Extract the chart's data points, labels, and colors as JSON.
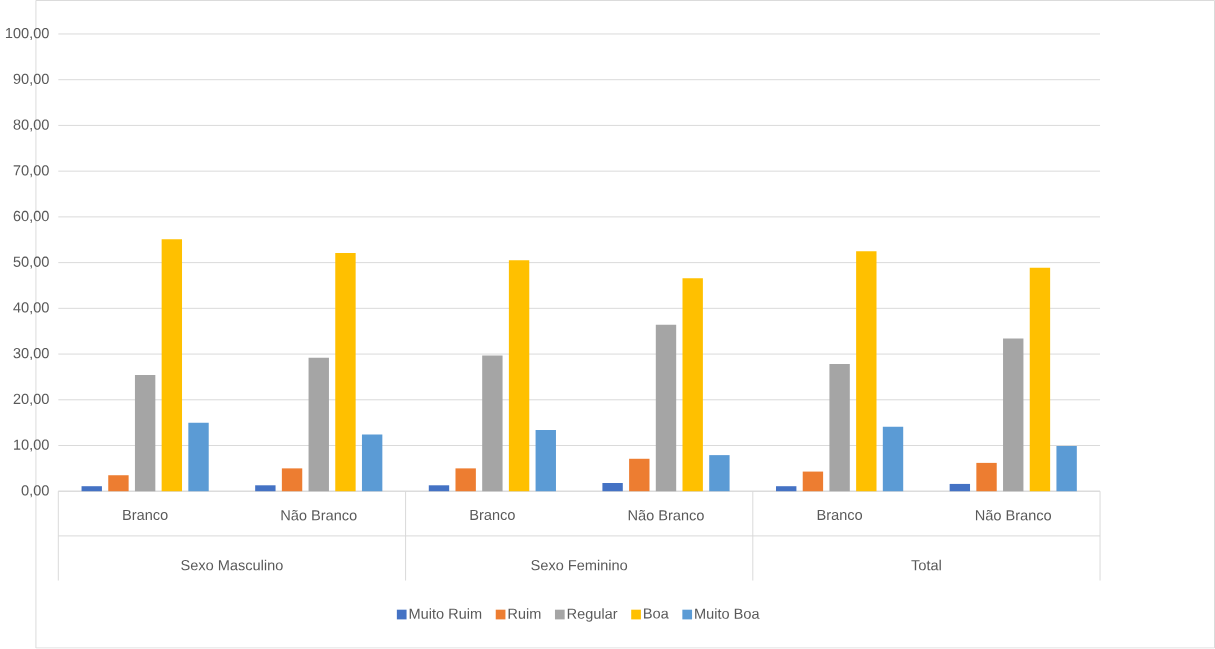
{
  "chart_data": {
    "type": "bar",
    "categories": [
      "Branco",
      "Não Branco",
      "Branco",
      "Não Branco",
      "Branco",
      "Não Branco"
    ],
    "annotations": [
      "Sexo Masculino",
      "Sexo Feminino",
      "Total"
    ],
    "series": [
      {
        "name": "Muito Ruim",
        "color": "#4472c4",
        "values": [
          1.1,
          1.3,
          1.3,
          1.8,
          1.1,
          1.6
        ]
      },
      {
        "name": "Ruim",
        "color": "#ed7d31",
        "values": [
          3.5,
          5.0,
          5.0,
          7.1,
          4.3,
          6.2
        ]
      },
      {
        "name": "Regular",
        "color": "#a5a5a5",
        "values": [
          25.4,
          29.2,
          29.7,
          36.4,
          27.8,
          33.4
        ]
      },
      {
        "name": "Boa",
        "color": "#ffc000",
        "values": [
          55.1,
          52.1,
          50.5,
          46.6,
          52.5,
          48.9
        ]
      },
      {
        "name": "Muito Boa",
        "color": "#5b9bd5",
        "values": [
          15.0,
          12.4,
          13.4,
          7.9,
          14.1,
          9.9
        ]
      }
    ],
    "ylim": [
      0,
      100
    ],
    "yticks": [
      {
        "value": 0,
        "label": "0,00"
      },
      {
        "value": 10,
        "label": "10,00"
      },
      {
        "value": 20,
        "label": "20,00"
      },
      {
        "value": 30,
        "label": "30,00"
      },
      {
        "value": 40,
        "label": "40,00"
      },
      {
        "value": 50,
        "label": "50,00"
      },
      {
        "value": 60,
        "label": "60,00"
      },
      {
        "value": 70,
        "label": "70,00"
      },
      {
        "value": 80,
        "label": "80,00"
      },
      {
        "value": 90,
        "label": "90,00"
      },
      {
        "value": 100,
        "label": "100,00"
      }
    ],
    "grid": "y",
    "legend": "bottom"
  }
}
